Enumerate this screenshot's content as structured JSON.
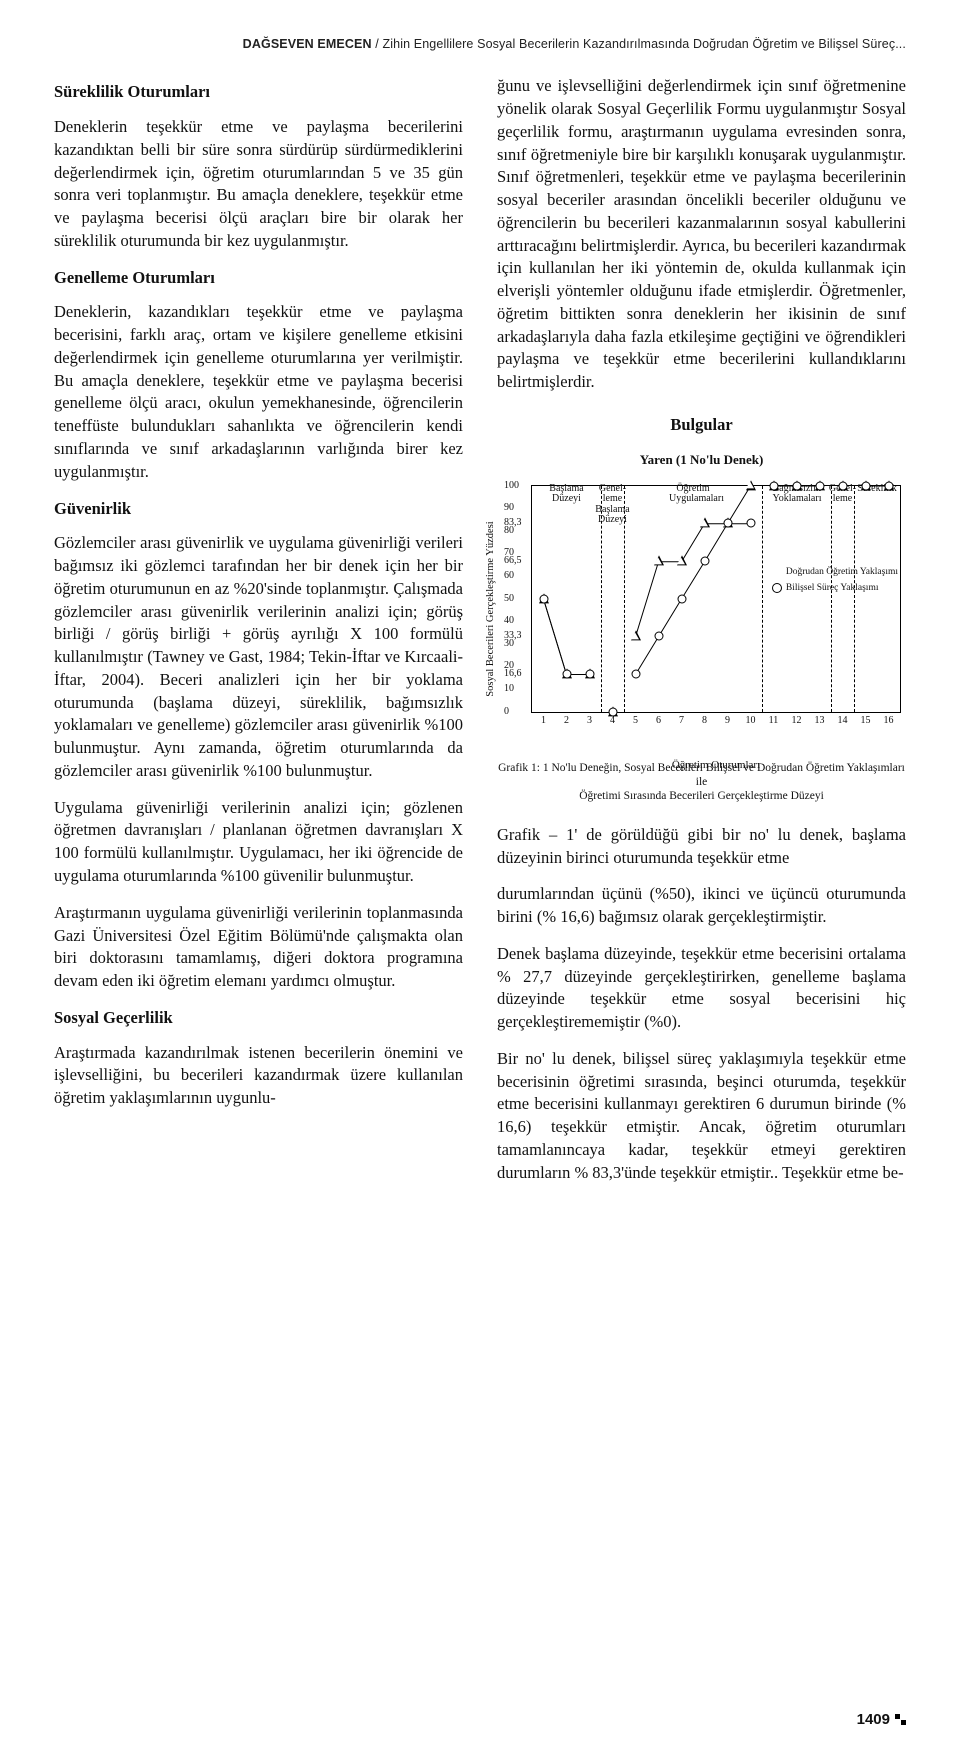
{
  "running_head": {
    "author": "DAĞSEVEN EMECEN",
    "sep": " / ",
    "title": "Zihin Engellilere Sosyal Becerilerin Kazandırılmasında Doğrudan Öğretim ve Bilişsel Süreç..."
  },
  "left": {
    "h1": "Süreklilik Oturumları",
    "p1": "Deneklerin teşekkür etme ve paylaşma becerilerini kazandıktan belli bir süre sonra sürdürüp sürdürmediklerini değerlendirmek için, öğretim oturumlarından 5 ve 35 gün sonra veri toplanmıştır. Bu amaçla deneklere, teşekkür etme ve paylaşma becerisi ölçü araçları bire bir olarak her süreklilik oturumunda bir kez uygulanmıştır.",
    "h2": "Genelleme Oturumları",
    "p2": "Deneklerin, kazandıkları teşekkür etme ve paylaşma becerisini, farklı araç, ortam ve kişilere genelleme etkisini değerlendirmek için genelleme oturumlarına yer verilmiştir. Bu amaçla deneklere, teşekkür etme ve paylaşma becerisi genelleme ölçü aracı, okulun yemekhanesinde, öğrencilerin teneffüste bulundukları sahanlıkta ve öğrencilerin kendi sınıflarında ve sınıf arkadaşlarının varlığında birer kez uygulanmıştır.",
    "h3": "Güvenirlik",
    "p3": "Gözlemciler arası güvenirlik ve uygulama güvenirliği verileri bağımsız iki gözlemci tarafından her bir denek için her bir öğretim oturumunun en az %20'sinde toplanmıştır. Çalışmada gözlemciler arası güvenirlik verilerinin analizi için; görüş birliği / görüş birliği + görüş ayrılığı X 100 formülü kullanılmıştır (Tawney ve Gast, 1984; Tekin-İftar ve Kırcaali-İftar, 2004). Beceri analizleri için her bir yoklama oturumunda (başlama düzeyi, süreklilik, bağımsızlık yoklamaları ve genelleme) gözlemciler arası güvenirlik %100 bulunmuştur. Aynı zamanda, öğretim oturumlarında da gözlemciler arası güvenirlik %100 bulunmuştur.",
    "p4": "Uygulama güvenirliği verilerinin analizi için; gözlenen öğretmen davranışları / planlanan öğretmen davranışları X 100 formülü kullanılmıştır. Uygulamacı, her iki öğrencide de uygulama oturumlarında %100 güvenilir bulunmuştur.",
    "p5": "Araştırmanın uygulama güvenirliği verilerinin toplanmasında Gazi Üniversitesi Özel Eğitim Bölümü'nde çalışmakta olan biri doktorasını tamamlamış, diğeri doktora programına devam eden iki öğretim elemanı yardımcı olmuştur.",
    "h4": "Sosyal Geçerlilik",
    "p6": "Araştırmada kazandırılmak istenen becerilerin önemini ve işlevselliğini, bu becerileri kazandırmak üzere kullanılan öğretim yaklaşımlarının uygunlu-"
  },
  "right": {
    "p1": "ğunu ve işlevselliğini değerlendirmek için sınıf öğretmenine yönelik olarak Sosyal Geçerlilik Formu uygulanmıştır Sosyal geçerlilik formu, araştırmanın uygulama evresinden sonra, sınıf öğretmeniyle bire bir karşılıklı konuşarak uygulanmıştır. Sınıf öğretmenleri, teşekkür etme ve paylaşma becerilerinin sosyal beceriler arasından öncelikli beceriler olduğunu ve öğrencilerin bu becerileri kazanmalarının sosyal kabullerini arttıracağını belirtmişlerdir. Ayrıca, bu becerileri kazandırmak için kullanılan her iki yöntemin de, okulda kullanmak için elverişli yöntemler olduğunu ifade etmişlerdir. Öğretmenler, öğretim bittikten sonra deneklerin her ikisinin de sınıf arkadaşlarıyla daha fazla etkileşime geçtiğini ve öğrendikleri paylaşma ve teşekkür etme becerilerini kullandıklarını belirtmişlerdir.",
    "h_results": "Bulgular",
    "p_after1": "Grafik – 1' de görüldüğü gibi bir no' lu denek, başlama düzeyinin birinci oturumunda teşekkür etme",
    "p_after2": "durumlarından üçünü (%50), ikinci ve üçüncü oturumunda birini (% 16,6) bağımsız olarak gerçekleştirmiştir.",
    "p_after3": "Denek başlama düzeyinde, teşekkür etme becerisini ortalama % 27,7 düzeyinde gerçekleştirirken, genelleme başlama düzeyinde teşekkür etme sosyal becerisini hiç gerçekleştirememiştir (%0).",
    "p_after4": "Bir no' lu denek, bilişsel süreç yaklaşımıyla teşekkür etme becerisinin öğretimi sırasında, beşinci oturumda, teşekkür etme becerisini kullanmayı gerektiren 6 durumun birinde (% 16,6) teşekkür etmiştir. Ancak, öğretim oturumları tamamlanıncaya kadar, teşekkür etmeyi gerektiren durumların % 83,3'ünde teşekkür etmiştir.. Teşekkür etme be-"
  },
  "chart": {
    "title": "Yaren (1 No'lu Denek)",
    "yaxis_label": "Sosyal Becerileri Gerçekleştirme Yüzdesi",
    "xaxis_label": "Öğretim Oturumları",
    "caption_l1": "Grafik 1: 1 No'lu Deneğin, Sosyal Becerileri Bilişsel ve Doğrudan Öğretim Yaklaşımları ile",
    "caption_l2": "Öğretimi Sırasında Becerileri Gerçekleştirme Düzeyi",
    "yticks": [
      0,
      10,
      20,
      30,
      40,
      50,
      60,
      70,
      80,
      90,
      100
    ],
    "yticks_extra": [
      16.6,
      33.3,
      66.5,
      83.3
    ],
    "xticks": [
      1,
      2,
      3,
      4,
      5,
      6,
      7,
      8,
      9,
      10,
      11,
      12,
      13,
      14,
      15,
      16
    ],
    "xmax": 16,
    "ymax": 100,
    "phase_lines_x": [
      3.5,
      4.5,
      10.5,
      13.5,
      14.5
    ],
    "phase_labels": [
      {
        "x": 2,
        "text": "Başlama\nDüzeyi"
      },
      {
        "x": 4,
        "text": "Genel-\nleme\nBaşlama\nDüzeyi"
      },
      {
        "x": 7.5,
        "text": "Öğretim Uygulamaları"
      },
      {
        "x": 12,
        "text": "Bağımsızlık\nYoklamaları"
      },
      {
        "x": 14,
        "text": "Genel-\nleme"
      },
      {
        "x": 15.5,
        "text": "Süreklilik"
      }
    ],
    "line_color": "#000000",
    "line_width": 1.0,
    "bg": "#ffffff",
    "series": {
      "dogrudan": {
        "marker": "triangle",
        "label": "Doğrudan Öğretim Yaklaşımı",
        "points": [
          {
            "x": 1,
            "y": 50
          },
          {
            "x": 2,
            "y": 16.6
          },
          {
            "x": 3,
            "y": 16.6
          },
          {
            "x": 4,
            "y": 0
          },
          {
            "x": 5,
            "y": 33.3
          },
          {
            "x": 6,
            "y": 66.5
          },
          {
            "x": 7,
            "y": 66.5
          },
          {
            "x": 8,
            "y": 83.3
          },
          {
            "x": 9,
            "y": 83.3
          },
          {
            "x": 10,
            "y": 100
          },
          {
            "x": 11,
            "y": 100
          },
          {
            "x": 12,
            "y": 100
          },
          {
            "x": 13,
            "y": 100
          },
          {
            "x": 14,
            "y": 100
          },
          {
            "x": 15,
            "y": 100
          },
          {
            "x": 16,
            "y": 100
          }
        ]
      },
      "bilissel": {
        "marker": "circle",
        "label": "Bilişsel Süreç Yaklaşımı",
        "points": [
          {
            "x": 1,
            "y": 50
          },
          {
            "x": 2,
            "y": 16.6
          },
          {
            "x": 3,
            "y": 16.6
          },
          {
            "x": 4,
            "y": 0
          },
          {
            "x": 5,
            "y": 16.6
          },
          {
            "x": 6,
            "y": 33.3
          },
          {
            "x": 7,
            "y": 50
          },
          {
            "x": 8,
            "y": 66.5
          },
          {
            "x": 9,
            "y": 83.3
          },
          {
            "x": 10,
            "y": 83.3
          },
          {
            "x": 11,
            "y": 100
          },
          {
            "x": 12,
            "y": 100
          },
          {
            "x": 13,
            "y": 100
          },
          {
            "x": 14,
            "y": 100
          },
          {
            "x": 15,
            "y": 100
          },
          {
            "x": 16,
            "y": 100
          }
        ]
      }
    },
    "segments_break_at": [
      3.5,
      4.5,
      10.5,
      13.5,
      14.5
    ]
  },
  "page_number": "1409"
}
